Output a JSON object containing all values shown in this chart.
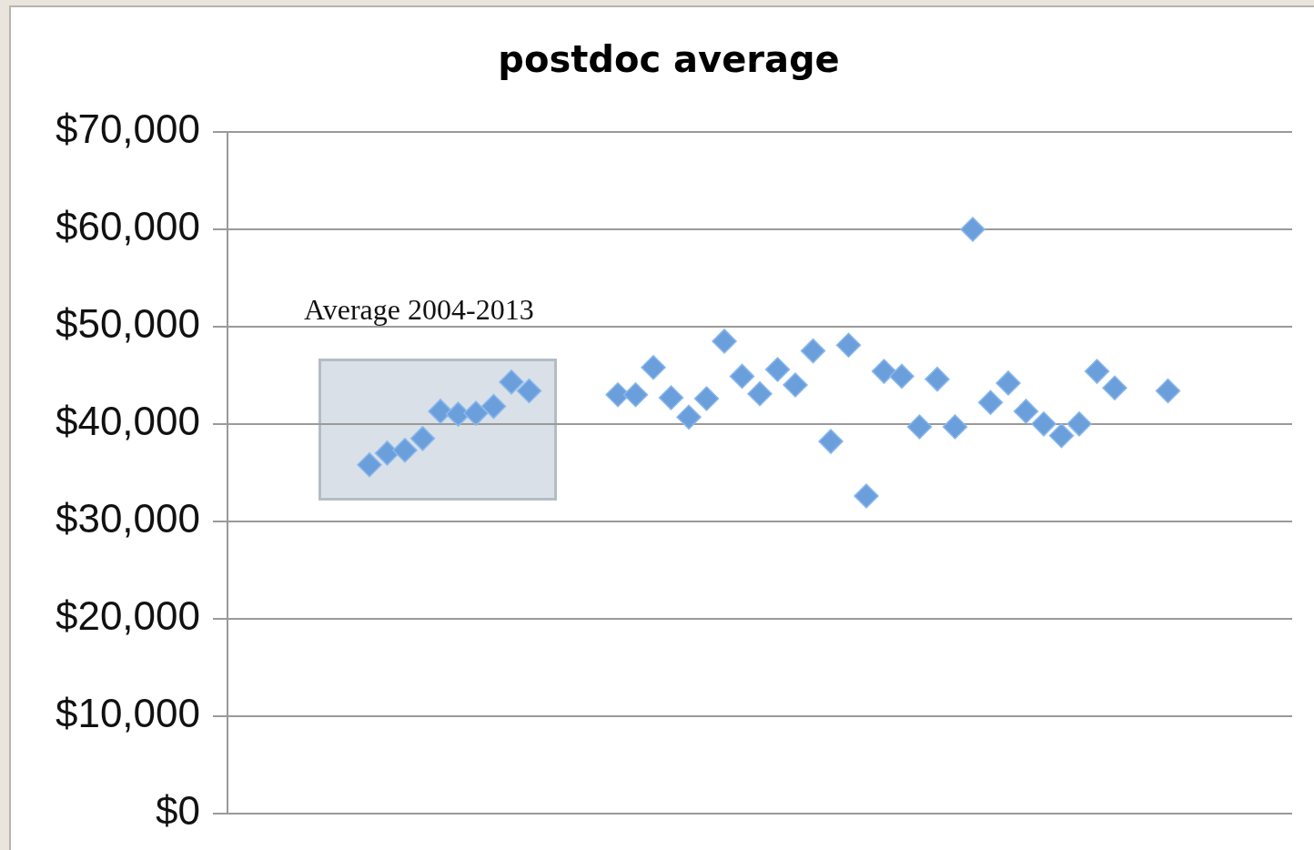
{
  "chart_data": {
    "type": "scatter",
    "title": "postdoc average",
    "categories": [
      null,
      null,
      null,
      null,
      null,
      null,
      null,
      null,
      null,
      null,
      null,
      null,
      null,
      null,
      null,
      null,
      null,
      null,
      null,
      null,
      null,
      null,
      null,
      null,
      null,
      null,
      null,
      null,
      null,
      null,
      null,
      null,
      null,
      null,
      null,
      null,
      null,
      null,
      null,
      null,
      null,
      null,
      null,
      null,
      null,
      null,
      null,
      null,
      null,
      null,
      null,
      null,
      null,
      null,
      null,
      null,
      null,
      null,
      null,
      null,
      null
    ],
    "values": [
      null,
      null,
      null,
      null,
      null,
      null,
      null,
      null,
      35800,
      37000,
      37300,
      38500,
      41300,
      41000,
      41100,
      41800,
      44300,
      43400,
      null,
      null,
      null,
      null,
      43000,
      43000,
      45800,
      42700,
      40700,
      42600,
      48500,
      44900,
      43100,
      45600,
      44000,
      47500,
      38200,
      48100,
      32600,
      45400,
      44900,
      39700,
      44600,
      39700,
      60000,
      42200,
      44200,
      41300,
      40000,
      38800,
      40000,
      45400,
      43700,
      null,
      null,
      43400,
      null,
      null,
      null,
      null,
      null,
      null,
      null
    ],
    "color": "#6a9fdc",
    "marker": "diamond",
    "ylim": [
      0,
      70000
    ],
    "yticks": [
      {
        "value": 0,
        "label": "$0"
      },
      {
        "value": 10000,
        "label": "$10,000"
      },
      {
        "value": 20000,
        "label": "$20,000"
      },
      {
        "value": 30000,
        "label": "$30,000"
      },
      {
        "value": 40000,
        "label": "$40,000"
      },
      {
        "value": 50000,
        "label": "$50,000"
      },
      {
        "value": 60000,
        "label": "$60,000"
      },
      {
        "value": 70000,
        "label": "$70,000"
      }
    ],
    "grid": "y",
    "legend": false,
    "tick_labels": "y",
    "annotations": [
      "Average 2004-2013"
    ]
  }
}
